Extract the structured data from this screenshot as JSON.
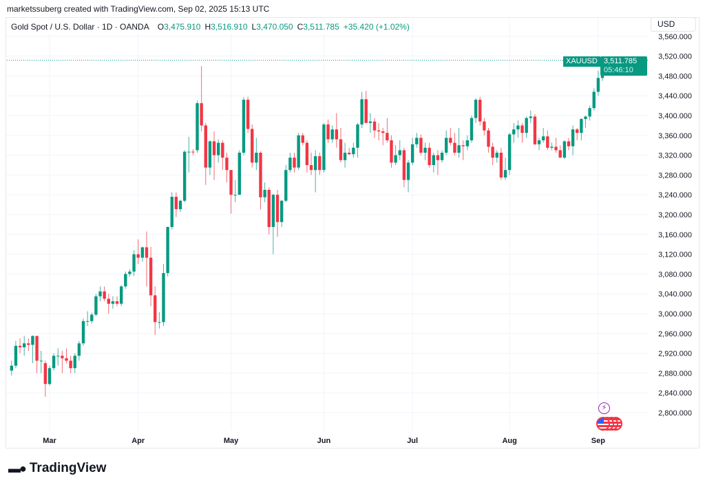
{
  "credit": "marketssuberg created with TradingView.com, Sep 02, 2025 15:13 UTC",
  "legend": {
    "symbol": "Gold Spot / U.S. Dollar · 1D · OANDA",
    "o_label": "O",
    "o": "3,475.910",
    "h_label": "H",
    "h": "3,516.910",
    "l_label": "L",
    "l": "3,470.050",
    "c_label": "C",
    "c": "3,511.785",
    "change": "+35.420 (+1.02%)"
  },
  "currency_button": "USD",
  "last_price": {
    "symbol": "XAUUSD",
    "price": "3,511.785",
    "countdown": "05:46:10"
  },
  "logo": {
    "text": "TradingView"
  },
  "events": [
    {
      "icon": "lightning-icon",
      "color": "#9c27b0"
    },
    {
      "icon": "us-flag-icon",
      "count": 4
    }
  ],
  "colors": {
    "up": "#089981",
    "down": "#f23645",
    "grid": "#f0f3fa"
  },
  "chart_data": {
    "type": "candlestick",
    "title": "Gold Spot / U.S. Dollar · 1D · OANDA",
    "ylim": [
      2780,
      3570
    ],
    "y_ticks": [
      "2,800.000",
      "2,840.000",
      "2,880.000",
      "2,920.000",
      "2,960.000",
      "3,000.000",
      "3,040.000",
      "3,080.000",
      "3,120.000",
      "3,160.000",
      "3,200.000",
      "3,240.000",
      "3,280.000",
      "3,320.000",
      "3,360.000",
      "3,400.000",
      "3,440.000",
      "3,480.000",
      "3,520.000",
      "3,560.000"
    ],
    "x_ticks": [
      {
        "label": "Mar",
        "date": "2025-03-03"
      },
      {
        "label": "Apr",
        "date": "2025-04-01"
      },
      {
        "label": "May",
        "date": "2025-05-01"
      },
      {
        "label": "Jun",
        "date": "2025-06-02"
      },
      {
        "label": "Jul",
        "date": "2025-07-01"
      },
      {
        "label": "Aug",
        "date": "2025-08-01"
      },
      {
        "label": "Sep",
        "date": "2025-09-01"
      }
    ],
    "grid": true,
    "columns": [
      "date",
      "open",
      "high",
      "low",
      "close"
    ],
    "candles": [
      [
        "2025-02-18",
        2885,
        2905,
        2875,
        2895
      ],
      [
        "2025-02-19",
        2895,
        2945,
        2890,
        2935
      ],
      [
        "2025-02-20",
        2935,
        2950,
        2920,
        2932
      ],
      [
        "2025-02-21",
        2932,
        2955,
        2915,
        2940
      ],
      [
        "2025-02-24",
        2940,
        2950,
        2925,
        2937
      ],
      [
        "2025-02-25",
        2937,
        2956,
        2900,
        2955
      ],
      [
        "2025-02-26",
        2955,
        2955,
        2880,
        2905
      ],
      [
        "2025-02-27",
        2905,
        2925,
        2880,
        2905
      ],
      [
        "2025-02-28",
        2900,
        2905,
        2832,
        2858
      ],
      [
        "2025-03-03",
        2858,
        2895,
        2855,
        2890
      ],
      [
        "2025-03-04",
        2890,
        2920,
        2885,
        2915
      ],
      [
        "2025-03-05",
        2915,
        2930,
        2895,
        2915
      ],
      [
        "2025-03-06",
        2915,
        2925,
        2880,
        2910
      ],
      [
        "2025-03-07",
        2910,
        2930,
        2900,
        2905
      ],
      [
        "2025-03-10",
        2905,
        2915,
        2880,
        2890
      ],
      [
        "2025-03-11",
        2890,
        2920,
        2880,
        2915
      ],
      [
        "2025-03-12",
        2915,
        2945,
        2905,
        2940
      ],
      [
        "2025-03-13",
        2940,
        2990,
        2935,
        2985
      ],
      [
        "2025-03-14",
        2985,
        3005,
        2975,
        2985
      ],
      [
        "2025-03-17",
        2985,
        3002,
        2980,
        2998
      ],
      [
        "2025-03-18",
        2998,
        3040,
        2995,
        3035
      ],
      [
        "2025-03-19",
        3035,
        3055,
        3025,
        3045
      ],
      [
        "2025-03-20",
        3045,
        3055,
        3025,
        3030
      ],
      [
        "2025-03-21",
        3030,
        3040,
        3000,
        3020
      ],
      [
        "2025-03-24",
        3020,
        3035,
        3010,
        3025
      ],
      [
        "2025-03-25",
        3025,
        3035,
        3015,
        3020
      ],
      [
        "2025-03-26",
        3020,
        3058,
        3015,
        3055
      ],
      [
        "2025-03-27",
        3055,
        3085,
        3050,
        3080
      ],
      [
        "2025-03-28",
        3080,
        3090,
        3075,
        3085
      ],
      [
        "2025-03-31",
        3085,
        3128,
        3076,
        3120
      ],
      [
        "2025-04-01",
        3120,
        3150,
        3100,
        3113
      ],
      [
        "2025-04-02",
        3113,
        3135,
        3105,
        3134
      ],
      [
        "2025-04-03",
        3134,
        3166,
        3055,
        3113
      ],
      [
        "2025-04-04",
        3113,
        3135,
        3015,
        3037
      ],
      [
        "2025-04-07",
        3037,
        3055,
        2957,
        2983
      ],
      [
        "2025-04-08",
        2983,
        3003,
        2970,
        2983
      ],
      [
        "2025-04-09",
        2983,
        3100,
        2975,
        3082
      ],
      [
        "2025-04-10",
        3082,
        3176,
        3075,
        3175
      ],
      [
        "2025-04-11",
        3175,
        3245,
        3170,
        3236
      ],
      [
        "2025-04-14",
        3236,
        3245,
        3195,
        3211
      ],
      [
        "2025-04-15",
        3211,
        3230,
        3205,
        3228
      ],
      [
        "2025-04-16",
        3228,
        3330,
        3225,
        3327
      ],
      [
        "2025-04-17",
        3327,
        3357,
        3285,
        3327
      ],
      [
        "2025-04-18",
        3327,
        3332,
        3320,
        3326
      ],
      [
        "2025-04-21",
        3330,
        3430,
        3325,
        3425
      ],
      [
        "2025-04-22",
        3425,
        3500,
        3368,
        3380
      ],
      [
        "2025-04-23",
        3380,
        3385,
        3260,
        3295
      ],
      [
        "2025-04-24",
        3295,
        3350,
        3280,
        3348
      ],
      [
        "2025-04-25",
        3348,
        3368,
        3270,
        3320
      ],
      [
        "2025-04-28",
        3320,
        3352,
        3305,
        3345
      ],
      [
        "2025-04-29",
        3345,
        3350,
        3290,
        3315
      ],
      [
        "2025-04-30",
        3315,
        3325,
        3265,
        3290
      ],
      [
        "2025-05-01",
        3290,
        3290,
        3202,
        3240
      ],
      [
        "2025-05-02",
        3240,
        3270,
        3225,
        3240
      ],
      [
        "2025-05-05",
        3240,
        3330,
        3240,
        3325
      ],
      [
        "2025-05-06",
        3325,
        3437,
        3320,
        3432
      ],
      [
        "2025-05-07",
        3432,
        3438,
        3365,
        3373
      ],
      [
        "2025-05-08",
        3373,
        3382,
        3295,
        3305
      ],
      [
        "2025-05-09",
        3305,
        3355,
        3290,
        3325
      ],
      [
        "2025-05-12",
        3325,
        3328,
        3210,
        3235
      ],
      [
        "2025-05-13",
        3235,
        3265,
        3225,
        3250
      ],
      [
        "2025-05-14",
        3250,
        3255,
        3160,
        3175
      ],
      [
        "2025-05-15",
        3175,
        3242,
        3120,
        3240
      ],
      [
        "2025-05-16",
        3240,
        3250,
        3155,
        3185
      ],
      [
        "2025-05-19",
        3185,
        3230,
        3175,
        3228
      ],
      [
        "2025-05-20",
        3228,
        3300,
        3225,
        3290
      ],
      [
        "2025-05-21",
        3290,
        3325,
        3285,
        3315
      ],
      [
        "2025-05-22",
        3315,
        3325,
        3285,
        3295
      ],
      [
        "2025-05-23",
        3295,
        3365,
        3290,
        3360
      ],
      [
        "2025-05-26",
        3360,
        3365,
        3340,
        3345
      ],
      [
        "2025-05-27",
        3345,
        3350,
        3285,
        3300
      ],
      [
        "2025-05-28",
        3300,
        3325,
        3280,
        3290
      ],
      [
        "2025-05-29",
        3290,
        3330,
        3245,
        3318
      ],
      [
        "2025-05-30",
        3318,
        3325,
        3280,
        3290
      ],
      [
        "2025-06-02",
        3290,
        3385,
        3285,
        3382
      ],
      [
        "2025-06-03",
        3382,
        3392,
        3345,
        3352
      ],
      [
        "2025-06-04",
        3352,
        3380,
        3345,
        3372
      ],
      [
        "2025-06-05",
        3372,
        3405,
        3335,
        3352
      ],
      [
        "2025-06-06",
        3352,
        3375,
        3305,
        3310
      ],
      [
        "2025-06-09",
        3310,
        3345,
        3295,
        3325
      ],
      [
        "2025-06-10",
        3325,
        3335,
        3320,
        3322
      ],
      [
        "2025-06-11",
        3322,
        3345,
        3315,
        3335
      ],
      [
        "2025-06-12",
        3335,
        3385,
        3315,
        3382
      ],
      [
        "2025-06-13",
        3382,
        3448,
        3375,
        3433
      ],
      [
        "2025-06-16",
        3433,
        3450,
        3385,
        3385
      ],
      [
        "2025-06-17",
        3385,
        3405,
        3365,
        3388
      ],
      [
        "2025-06-18",
        3388,
        3395,
        3355,
        3370
      ],
      [
        "2025-06-19",
        3370,
        3385,
        3350,
        3368
      ],
      [
        "2025-06-20",
        3368,
        3375,
        3340,
        3365
      ],
      [
        "2025-06-23",
        3365,
        3395,
        3345,
        3350
      ],
      [
        "2025-06-24",
        3350,
        3360,
        3295,
        3305
      ],
      [
        "2025-06-25",
        3305,
        3340,
        3300,
        3320
      ],
      [
        "2025-06-26",
        3320,
        3350,
        3310,
        3330
      ],
      [
        "2025-06-27",
        3330,
        3335,
        3255,
        3270
      ],
      [
        "2025-06-30",
        3270,
        3310,
        3245,
        3305
      ],
      [
        "2025-07-01",
        3305,
        3355,
        3300,
        3342
      ],
      [
        "2025-07-02",
        3342,
        3365,
        3335,
        3355
      ],
      [
        "2025-07-03",
        3355,
        3362,
        3320,
        3325
      ],
      [
        "2025-07-04",
        3325,
        3345,
        3310,
        3335
      ],
      [
        "2025-07-07",
        3335,
        3345,
        3295,
        3300
      ],
      [
        "2025-07-08",
        3300,
        3325,
        3285,
        3320
      ],
      [
        "2025-07-09",
        3320,
        3330,
        3280,
        3310
      ],
      [
        "2025-07-10",
        3310,
        3330,
        3305,
        3325
      ],
      [
        "2025-07-11",
        3325,
        3370,
        3320,
        3355
      ],
      [
        "2025-07-14",
        3355,
        3375,
        3340,
        3345
      ],
      [
        "2025-07-15",
        3345,
        3365,
        3320,
        3325
      ],
      [
        "2025-07-16",
        3325,
        3375,
        3315,
        3340
      ],
      [
        "2025-07-17",
        3340,
        3350,
        3310,
        3338
      ],
      [
        "2025-07-18",
        3338,
        3360,
        3330,
        3350
      ],
      [
        "2025-07-21",
        3350,
        3400,
        3345,
        3395
      ],
      [
        "2025-07-22",
        3395,
        3435,
        3385,
        3432
      ],
      [
        "2025-07-23",
        3432,
        3438,
        3380,
        3388
      ],
      [
        "2025-07-24",
        3388,
        3395,
        3360,
        3370
      ],
      [
        "2025-07-25",
        3370,
        3375,
        3325,
        3337
      ],
      [
        "2025-07-28",
        3337,
        3345,
        3300,
        3315
      ],
      [
        "2025-07-29",
        3315,
        3330,
        3305,
        3325
      ],
      [
        "2025-07-30",
        3325,
        3335,
        3270,
        3275
      ],
      [
        "2025-07-31",
        3275,
        3315,
        3270,
        3290
      ],
      [
        "2025-08-01",
        3290,
        3365,
        3280,
        3362
      ],
      [
        "2025-08-04",
        3362,
        3385,
        3345,
        3372
      ],
      [
        "2025-08-05",
        3372,
        3390,
        3355,
        3380
      ],
      [
        "2025-08-06",
        3380,
        3385,
        3345,
        3365
      ],
      [
        "2025-08-07",
        3365,
        3398,
        3355,
        3395
      ],
      [
        "2025-08-08",
        3395,
        3410,
        3385,
        3398
      ],
      [
        "2025-08-11",
        3398,
        3403,
        3340,
        3342
      ],
      [
        "2025-08-12",
        3342,
        3355,
        3330,
        3350
      ],
      [
        "2025-08-13",
        3350,
        3375,
        3345,
        3358
      ],
      [
        "2025-08-14",
        3358,
        3370,
        3330,
        3335
      ],
      [
        "2025-08-15",
        3335,
        3345,
        3330,
        3337
      ],
      [
        "2025-08-18",
        3337,
        3355,
        3325,
        3330
      ],
      [
        "2025-08-19",
        3330,
        3340,
        3315,
        3315
      ],
      [
        "2025-08-20",
        3315,
        3350,
        3312,
        3348
      ],
      [
        "2025-08-21",
        3348,
        3355,
        3330,
        3338
      ],
      [
        "2025-08-22",
        3338,
        3380,
        3320,
        3372
      ],
      [
        "2025-08-25",
        3372,
        3375,
        3350,
        3365
      ],
      [
        "2025-08-26",
        3365,
        3395,
        3350,
        3393
      ],
      [
        "2025-08-27",
        3393,
        3400,
        3375,
        3398
      ],
      [
        "2025-08-28",
        3398,
        3420,
        3390,
        3415
      ],
      [
        "2025-08-29",
        3415,
        3455,
        3410,
        3448
      ],
      [
        "2025-09-01",
        3448,
        3490,
        3440,
        3476
      ],
      [
        "2025-09-02",
        3475.91,
        3516.91,
        3470.05,
        3511.785
      ]
    ],
    "last_price": 3511.785
  }
}
